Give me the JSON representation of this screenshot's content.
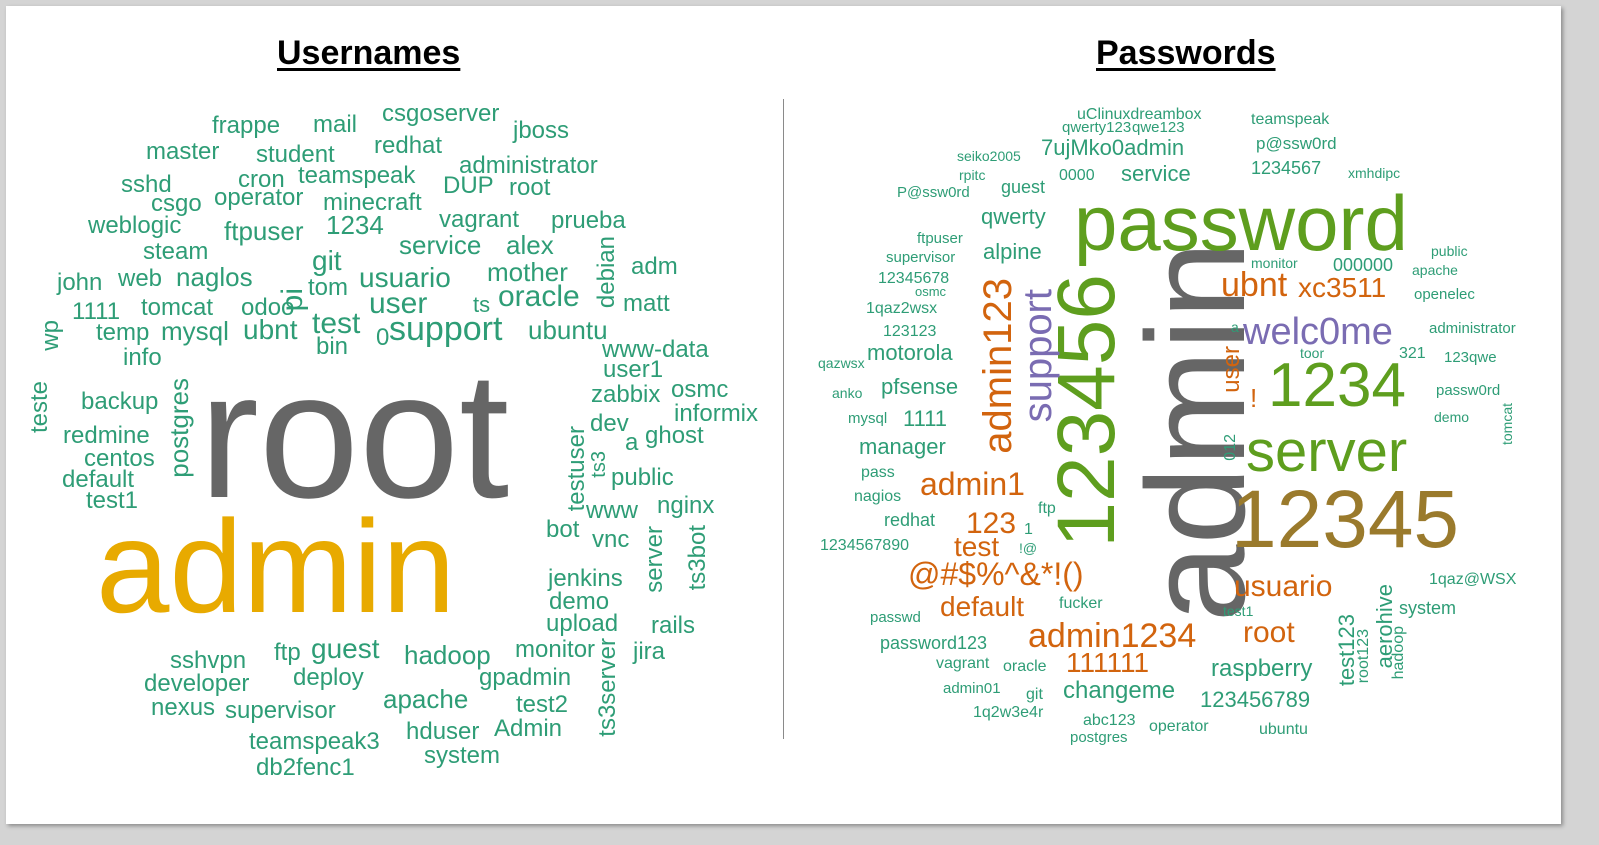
{
  "usernames": {
    "title": "Usernames",
    "words": [
      "root",
      "admin",
      "support",
      "user",
      "test",
      "usuario",
      "oracle",
      "service",
      "alex",
      "mother",
      "1234",
      "naglos",
      "ubnt",
      "mysql",
      "tomcat",
      "odoo",
      "temp",
      "info",
      "1111",
      "john",
      "web",
      "steam",
      "weblogic",
      "ftpuser",
      "git",
      "tom",
      "bin",
      "0",
      "pi",
      "debian",
      "adm",
      "matt",
      "ubuntu",
      "www-data",
      "user1",
      "zabbix",
      "osmc",
      "informix",
      "dev",
      "a",
      "ghost",
      "testuser",
      "ts3",
      "public",
      "www",
      "nginx",
      "bot",
      "vnc",
      "server",
      "ts3bot",
      "jenkins",
      "demo",
      "upload",
      "rails",
      "jira",
      "monitor",
      "gpadmin",
      "hadoop",
      "test2",
      "Admin",
      "hduser",
      "system",
      "ts3server",
      "guest",
      "ftp",
      "deploy",
      "apache",
      "sshvpn",
      "developer",
      "nexus",
      "supervisor",
      "teamspeak3",
      "db2fenc1",
      "backup",
      "redmine",
      "centos",
      "default",
      "test1",
      "postgres",
      "teste",
      "wp",
      "ts",
      "prueba",
      "vagrant",
      "DUP",
      "root",
      "administrator",
      "jboss",
      "csgoserver",
      "mail",
      "frappe",
      "master",
      "student",
      "cron",
      "teamspeak",
      "redhat",
      "sshd",
      "csgo",
      "operator",
      "minecraft"
    ],
    "colors": {
      "big1": "#666666",
      "big2": "#e8aa00",
      "small": "#2e9d76"
    }
  },
  "passwords": {
    "title": "Passwords",
    "words": [
      "admin",
      "password",
      "123456",
      "12345",
      "1234",
      "server",
      "welc0me",
      "support",
      "admin123",
      "ubnt",
      "xc3511",
      "usuario",
      "admin1234",
      "root",
      "admin1",
      "@#$%^&*!()",
      "default",
      "test",
      "123",
      "111111",
      "raspberry",
      "changeme",
      "123456789",
      "aerohive",
      "test123",
      "root123",
      "hadoop",
      "system",
      "1qaz@WSX",
      "user",
      "!",
      "012",
      "7ujMko0admin",
      "service",
      "1234567",
      "guest",
      "0000",
      "qwerty",
      "alpine",
      "uClinuxdreambox",
      "qwerty123",
      "qwe123",
      "teamspeak",
      "p@ssw0rd",
      "seiko2005",
      "rpitc",
      "xmhdipc",
      "P@ssw0rd",
      "ftpuser",
      "supervisor",
      "12345678",
      "osmc",
      "1qaz2wsx",
      "123123",
      "motorola",
      "pfsense",
      "1111",
      "manager",
      "pass",
      "nagios",
      "redhat",
      "1234567890",
      "monitor",
      "public",
      "apache",
      "000000",
      "openelec",
      "administrator",
      "toor",
      "321",
      "123qwe",
      "passw0rd",
      "demo",
      "tomcat",
      "qazwsx",
      "anko",
      "mysql",
      "a",
      "ftp",
      "1",
      "!@",
      "fucker",
      "passwd",
      "test1",
      "password123",
      "vagrant",
      "oracle",
      "admin01",
      "git",
      "1q2w3e4r",
      "abc123",
      "operator",
      "ubuntu",
      "postgres"
    ],
    "colors": {
      "big1": "#666666",
      "green": "#5e9e1e",
      "brown": "#9a7a2c",
      "orange": "#d2640e",
      "purple": "#7a6cb2",
      "small": "#2e9d76"
    }
  }
}
